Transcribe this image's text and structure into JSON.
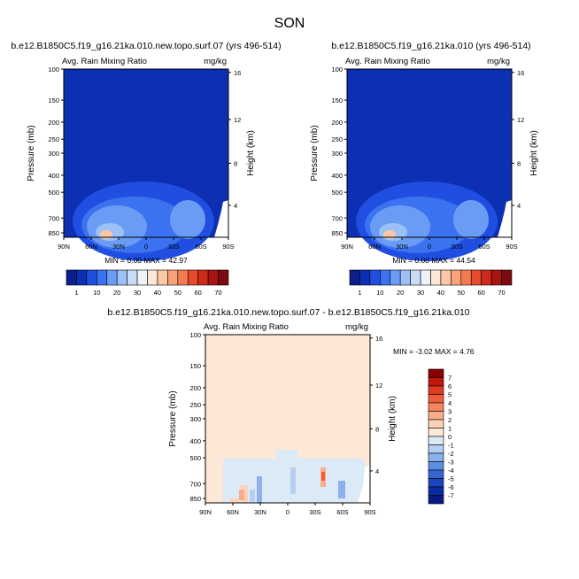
{
  "page": {
    "title": "SON"
  },
  "chart_data": [
    {
      "type": "heatmap",
      "title": "b.e12.B1850C5.f19_g16.21ka.010.new.topo.surf.07 (yrs 496-514)",
      "subtitle_left": "Avg. Rain Mixing Ratio",
      "subtitle_right": "mg/kg",
      "ylabel": "Pressure (mb)",
      "ylabel_right": "Height (km)",
      "x_ticks": [
        "90N",
        "60N",
        "30N",
        "0",
        "30S",
        "60S",
        "90S"
      ],
      "y_ticks": [
        "100",
        "150",
        "200",
        "250",
        "300",
        "400",
        "500",
        "700",
        "850"
      ],
      "y_right_ticks": [
        "16",
        "12",
        "8",
        "4"
      ],
      "stats": "MIN =  0.00  MAX = 42.97",
      "colorbar": {
        "labels": [
          "1",
          "10",
          "20",
          "30",
          "40",
          "50",
          "60",
          "70"
        ],
        "colors": [
          "#0a1e8c",
          "#0d2fb4",
          "#1f4ee0",
          "#3b72f0",
          "#6a9cf5",
          "#9cc1f7",
          "#c9dcf7",
          "#eef2f8",
          "#fde7d6",
          "#fbc7a6",
          "#f9a27a",
          "#f47a52",
          "#e84a2d",
          "#cc2a1a",
          "#a81410",
          "#7d0a0c"
        ]
      },
      "min": 0.0,
      "max": 42.97
    },
    {
      "type": "heatmap",
      "title": "b.e12.B1850C5.f19_g16.21ka.010 (yrs 496-514)",
      "subtitle_left": "Avg. Rain Mixing Ratio",
      "subtitle_right": "mg/kg",
      "ylabel": "Pressure (mb)",
      "ylabel_right": "Height (km)",
      "x_ticks": [
        "90N",
        "60N",
        "30N",
        "0",
        "30S",
        "60S",
        "90S"
      ],
      "y_ticks": [
        "100",
        "150",
        "200",
        "250",
        "300",
        "400",
        "500",
        "700",
        "850"
      ],
      "y_right_ticks": [
        "16",
        "12",
        "8",
        "4"
      ],
      "stats": "MIN =  0.00  MAX = 44.54",
      "colorbar": {
        "labels": [
          "1",
          "10",
          "20",
          "30",
          "40",
          "50",
          "60",
          "70"
        ],
        "colors": [
          "#0a1e8c",
          "#0d2fb4",
          "#1f4ee0",
          "#3b72f0",
          "#6a9cf5",
          "#9cc1f7",
          "#c9dcf7",
          "#eef2f8",
          "#fde7d6",
          "#fbc7a6",
          "#f9a27a",
          "#f47a52",
          "#e84a2d",
          "#cc2a1a",
          "#a81410",
          "#7d0a0c"
        ]
      },
      "min": 0.0,
      "max": 44.54
    },
    {
      "type": "heatmap",
      "title": "b.e12.B1850C5.f19_g16.21ka.010.new.topo.surf.07 - b.e12.B1850C5.f19_g16.21ka.010",
      "subtitle_left": "Avg. Rain Mixing Ratio",
      "subtitle_right": "mg/kg",
      "ylabel": "Pressure (mb)",
      "ylabel_right": "Height (km)",
      "x_ticks": [
        "90N",
        "60N",
        "30N",
        "0",
        "30S",
        "60S",
        "90S"
      ],
      "y_ticks": [
        "100",
        "150",
        "200",
        "250",
        "300",
        "400",
        "500",
        "700",
        "850"
      ],
      "y_right_ticks": [
        "16",
        "12",
        "8",
        "4"
      ],
      "stats": "MIN = -3.02  MAX =  4.76",
      "colorbar": {
        "labels": [
          "7",
          "6",
          "5",
          "4",
          "3",
          "2",
          "1",
          "0",
          "-1",
          "-2",
          "-3",
          "-4",
          "-5",
          "-6",
          "-7"
        ],
        "colors": [
          "#8b0000",
          "#c0160e",
          "#e03a22",
          "#ef5d3c",
          "#f5875f",
          "#f9ad8a",
          "#fbd2b8",
          "#fde8d8",
          "#dce9f7",
          "#b5cff2",
          "#8cb1ec",
          "#5e8ee2",
          "#3466d4",
          "#1a45bf",
          "#0a2aa2",
          "#081a80"
        ]
      },
      "min": -3.02,
      "max": 4.76
    }
  ]
}
